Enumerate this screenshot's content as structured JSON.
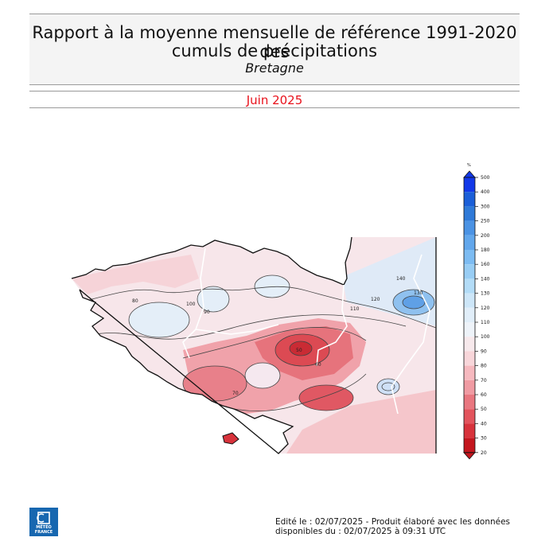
{
  "title": {
    "line1": "Rapport à la moyenne mensuelle de référence 1991-2020 des",
    "line2": "cumuls de précipitations",
    "region": "Bretagne"
  },
  "period": "Juin 2025",
  "colors": {
    "title_bg": "#f4f4f4",
    "period_text": "#e8111b",
    "logo_bg": "#1767b0"
  },
  "scale": {
    "unit": "%",
    "labels": [
      "500",
      "400",
      "300",
      "250",
      "200",
      "180",
      "160",
      "140",
      "130",
      "120",
      "110",
      "100",
      "90",
      "80",
      "70",
      "60",
      "50",
      "40",
      "30",
      "20"
    ],
    "colors": [
      "#1238e8",
      "#1b5fd8",
      "#2f7ad8",
      "#4b93e4",
      "#62a7ec",
      "#7dbcf2",
      "#98cdf4",
      "#b3dcf7",
      "#cde6f8",
      "#e1eef9",
      "#eef3f9",
      "#f7e9ec",
      "#f8d6da",
      "#f6b9bf",
      "#f09ba3",
      "#e97780",
      "#e3545d",
      "#d8333c",
      "#c4161e"
    ]
  },
  "map": {
    "contour_labels": [
      "80",
      "90",
      "100",
      "110",
      "120",
      "130",
      "140",
      "70",
      "60",
      "50"
    ]
  },
  "logo": {
    "line1": "MÉTÉO",
    "line2": "FRANCE"
  },
  "footer": {
    "line1": "Edité le : 02/07/2025 - Produit élaboré avec les données",
    "line2": "disponibles du : 02/07/2025 à 09:31 UTC"
  }
}
